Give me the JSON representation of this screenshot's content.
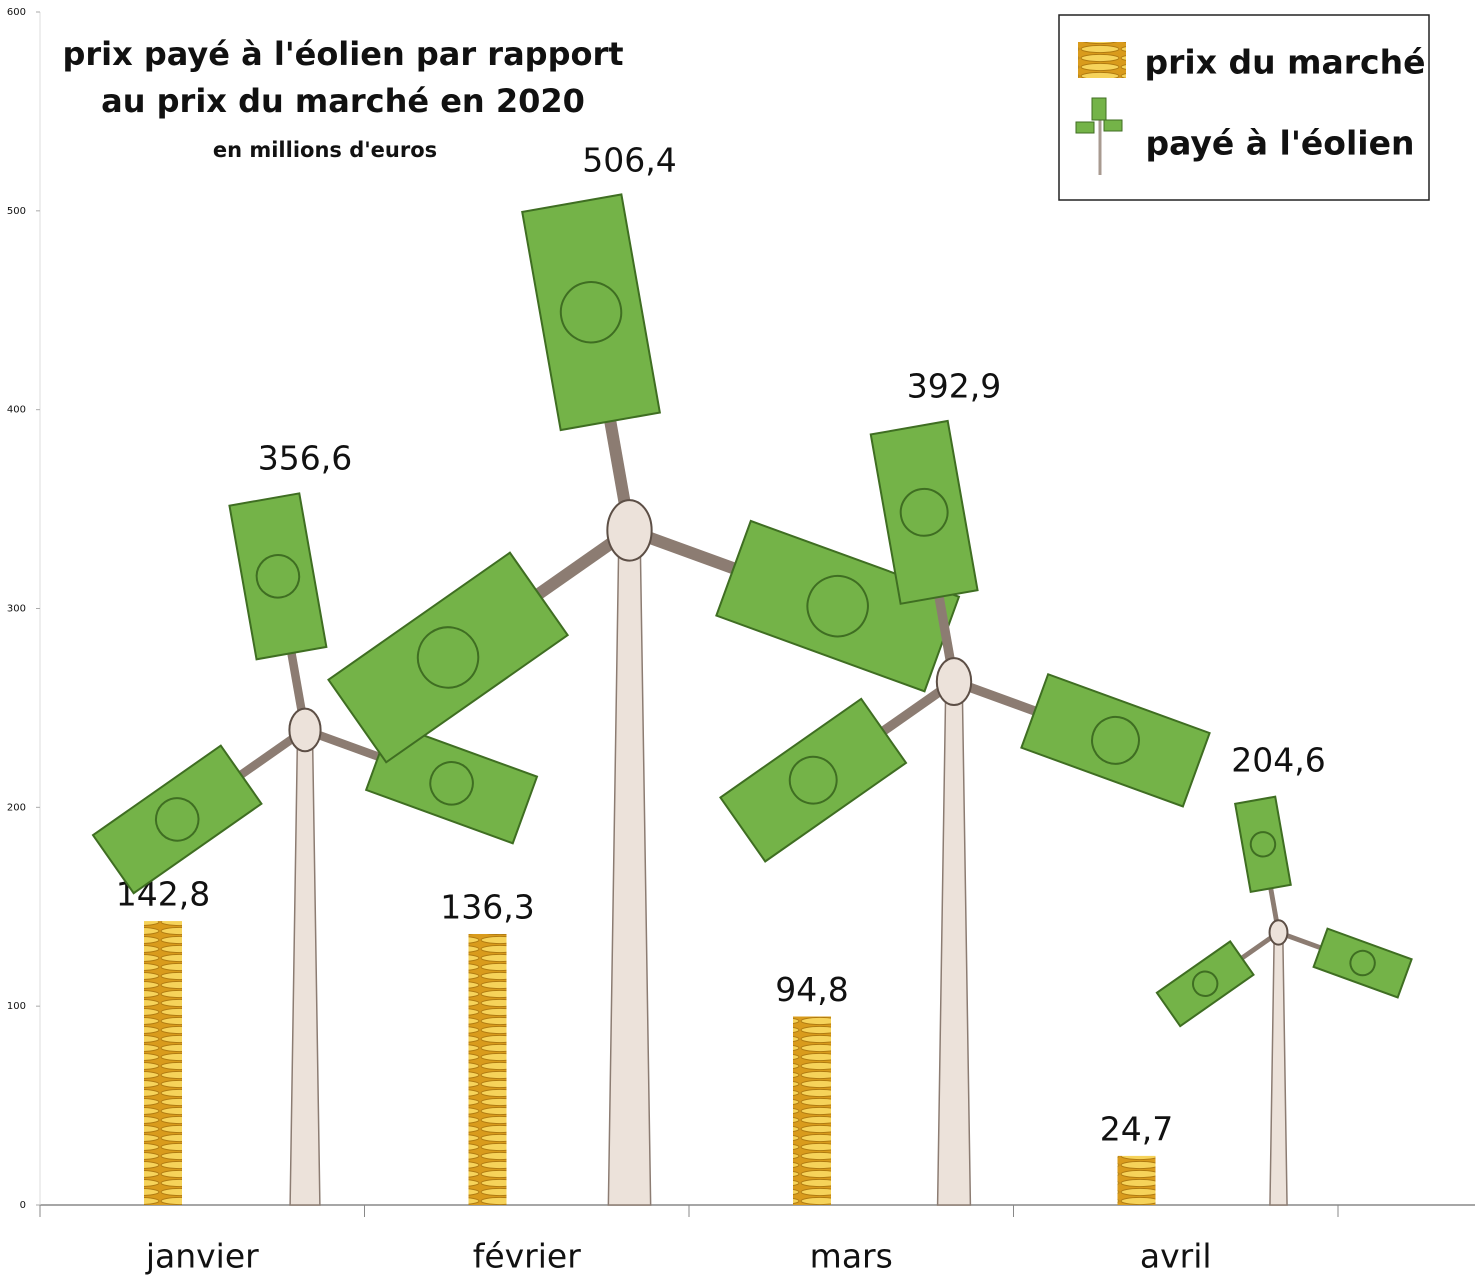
{
  "chart_data": {
    "type": "bar",
    "title": [
      "prix payé à l'éolien par rapport",
      "au prix du marché en 2020"
    ],
    "subtitle": "en millions d'euros",
    "categories": [
      "janvier",
      "février",
      "mars",
      "avril"
    ],
    "series": [
      {
        "name": "prix du marché",
        "color": "#e9b52f",
        "values": [
          142.8,
          136.3,
          94.8,
          24.7
        ],
        "value_labels": [
          "142,8",
          "136,3",
          "94,8",
          "24,7"
        ]
      },
      {
        "name": "payé à l'éolien",
        "color": "#74b348",
        "values": [
          356.6,
          506.4,
          392.9,
          204.6
        ],
        "value_labels": [
          "356,6",
          "506,4",
          "392,9",
          "204,6"
        ]
      }
    ],
    "ylim": [
      0,
      600
    ],
    "yticks": [
      0,
      100,
      200,
      300,
      400,
      500,
      600
    ],
    "grid": false,
    "legend": "top-right"
  }
}
